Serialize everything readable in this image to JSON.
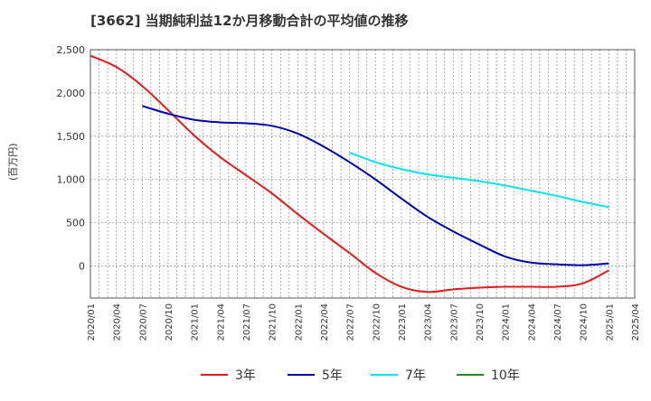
{
  "chart_data": {
    "type": "line",
    "title": "[3662]  当期純利益12か月移動合計の平均値の推移",
    "ylabel": "(百万円)",
    "xlabel": "",
    "ylim": [
      -370,
      2500
    ],
    "yticks": [
      0,
      500,
      1000,
      1500,
      2000,
      2500
    ],
    "ytick_labels": [
      "0",
      "500",
      "1,000",
      "1,500",
      "2,000",
      "2,500"
    ],
    "xticks": [
      "2020/01",
      "2020/04",
      "2020/07",
      "2020/10",
      "2021/01",
      "2021/04",
      "2021/07",
      "2021/10",
      "2022/01",
      "2022/04",
      "2022/07",
      "2022/10",
      "2023/01",
      "2023/04",
      "2023/07",
      "2023/10",
      "2024/01",
      "2024/04",
      "2024/07",
      "2024/10",
      "2025/01",
      "2025/04"
    ],
    "grid": true,
    "legend_position": "bottom",
    "series": [
      {
        "name": "3年",
        "color": "#e41a1c",
        "x": [
          "2020/01",
          "2020/04",
          "2020/07",
          "2020/10",
          "2021/01",
          "2021/04",
          "2021/07",
          "2021/10",
          "2022/01",
          "2022/04",
          "2022/07",
          "2022/10",
          "2023/01",
          "2023/04",
          "2023/07",
          "2023/10",
          "2024/01",
          "2024/04",
          "2024/07",
          "2024/10",
          "2025/01"
        ],
        "y": [
          2430,
          2300,
          2080,
          1800,
          1510,
          1260,
          1050,
          840,
          600,
          370,
          150,
          -80,
          -240,
          -300,
          -270,
          -250,
          -240,
          -240,
          -240,
          -200,
          -50
        ]
      },
      {
        "name": "5年",
        "color": "#0000aa",
        "x": [
          "2020/07",
          "2020/10",
          "2021/01",
          "2021/04",
          "2021/07",
          "2021/10",
          "2022/01",
          "2022/04",
          "2022/07",
          "2022/10",
          "2023/01",
          "2023/04",
          "2023/07",
          "2023/10",
          "2024/01",
          "2024/04",
          "2024/07",
          "2024/10",
          "2025/01"
        ],
        "y": [
          1850,
          1760,
          1690,
          1660,
          1650,
          1620,
          1530,
          1380,
          1200,
          1000,
          780,
          570,
          400,
          250,
          110,
          40,
          20,
          10,
          30
        ]
      },
      {
        "name": "7年",
        "color": "#00e5ee",
        "x": [
          "2022/07",
          "2022/10",
          "2023/01",
          "2023/04",
          "2023/07",
          "2023/10",
          "2024/01",
          "2024/04",
          "2024/07",
          "2024/10",
          "2025/01"
        ],
        "y": [
          1310,
          1200,
          1120,
          1060,
          1020,
          980,
          930,
          870,
          810,
          740,
          680
        ]
      },
      {
        "name": "10年",
        "color": "#228b22",
        "x": [],
        "y": []
      }
    ]
  }
}
